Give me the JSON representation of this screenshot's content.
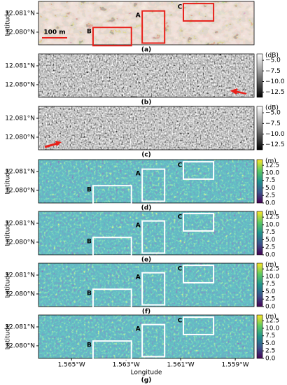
{
  "chart_data": [
    {
      "type": "image",
      "label": "(a)",
      "ylabel": "Latitude",
      "ylim": [
        12.07933,
        12.08163
      ],
      "yticks": [
        {
          "value": 12.081,
          "label": "12.081°N"
        },
        {
          "value": 12.08,
          "label": "12.080°N"
        }
      ],
      "annotations": [
        "A",
        "B",
        "C",
        "100 m"
      ]
    },
    {
      "type": "image",
      "label": "(b)",
      "ylim": [
        12.07933,
        12.08163
      ],
      "yticks": [
        {
          "value": 12.081,
          "label": "12.081°N"
        },
        {
          "value": 12.08,
          "label": "12.080°N"
        }
      ],
      "colorbar": {
        "unit": "(dB)",
        "clim": [
          -13.7,
          -3.5
        ],
        "colormap": "gray",
        "ticks": [
          {
            "value": -5,
            "label": "−5.0"
          },
          {
            "value": -7.5,
            "label": "−7.5"
          },
          {
            "value": -10,
            "label": "−10.0"
          },
          {
            "value": -12.5,
            "label": "−12.5"
          }
        ]
      }
    },
    {
      "type": "image",
      "label": "(c)",
      "ylim": [
        12.07933,
        12.08163
      ],
      "yticks": [
        {
          "value": 12.081,
          "label": "12.081°N"
        },
        {
          "value": 12.08,
          "label": "12.080°N"
        }
      ],
      "colorbar": {
        "unit": "(dB)",
        "clim": [
          -13.7,
          -3.5
        ],
        "colormap": "gray",
        "ticks": [
          {
            "value": -5,
            "label": "−5.0"
          },
          {
            "value": -7.5,
            "label": "−7.5"
          },
          {
            "value": -10,
            "label": "−10.0"
          },
          {
            "value": -12.5,
            "label": "−12.5"
          }
        ]
      }
    },
    {
      "type": "image",
      "label": "(d)",
      "ylabel": "Latitude",
      "ylim": [
        12.07933,
        12.08163
      ],
      "yticks": [
        {
          "value": 12.081,
          "label": "12.081°N"
        },
        {
          "value": 12.08,
          "label": "12.080°N"
        }
      ],
      "annotations": [
        "A",
        "B",
        "C"
      ],
      "colorbar": {
        "unit": "(m)",
        "clim": [
          0,
          14.4
        ],
        "colormap": "viridis",
        "ticks": [
          {
            "value": 0,
            "label": "0.0"
          },
          2.5,
          {
            "value": 5,
            "label": "5.0"
          },
          7.5,
          {
            "value": 10,
            "label": "10.0"
          },
          12.5
        ]
      }
    },
    {
      "type": "image",
      "label": "(e)",
      "ylabel": "Latitude",
      "ylim": [
        12.07933,
        12.08163
      ],
      "yticks": [
        {
          "value": 12.081,
          "label": "12.081°N"
        },
        {
          "value": 12.08,
          "label": "12.080°N"
        }
      ],
      "annotations": [
        "A",
        "B",
        "C"
      ],
      "colorbar": {
        "unit": "(m)",
        "clim": [
          0,
          14.4
        ],
        "colormap": "viridis",
        "ticks": [
          {
            "value": 0,
            "label": "0.0"
          },
          2.5,
          {
            "value": 5,
            "label": "5.0"
          },
          7.5,
          {
            "value": 10,
            "label": "10.0"
          },
          12.5
        ]
      }
    },
    {
      "type": "image",
      "label": "(f)",
      "ylabel": "Latitude",
      "ylim": [
        12.07933,
        12.08163
      ],
      "yticks": [
        {
          "value": 12.081,
          "label": "12.081°N"
        },
        {
          "value": 12.08,
          "label": "12.080°N"
        }
      ],
      "annotations": [
        "A",
        "B",
        "C"
      ],
      "colorbar": {
        "unit": "(m)",
        "clim": [
          0,
          14.4
        ],
        "colormap": "viridis",
        "ticks": [
          {
            "value": 0,
            "label": "0.0"
          },
          2.5,
          {
            "value": 5,
            "label": "5.0"
          },
          7.5,
          {
            "value": 10,
            "label": "10.0"
          },
          12.5
        ]
      }
    },
    {
      "type": "image",
      "label": "(g)",
      "ylabel": "Latitude",
      "xlabel": "Longitude",
      "ylim": [
        12.07933,
        12.08163
      ],
      "yticks": [
        {
          "value": 12.081,
          "label": "12.081°N"
        },
        {
          "value": 12.08,
          "label": "12.080°N"
        }
      ],
      "xlim": [
        -1.56621,
        -1.55831
      ],
      "xticks": [
        {
          "value": -1.565,
          "label": "1.565°W"
        },
        {
          "value": -1.563,
          "label": "1.563°W"
        },
        {
          "value": -1.561,
          "label": "1.561°W"
        },
        {
          "value": -1.559,
          "label": "1.559°W"
        }
      ],
      "annotations": [
        "A",
        "B",
        "C"
      ],
      "colorbar": {
        "unit": "(m)",
        "clim": [
          0,
          14.4
        ],
        "colormap": "viridis",
        "ticks": [
          {
            "value": 0,
            "label": "0.0"
          },
          2.5,
          {
            "value": 5,
            "label": "5.0"
          },
          7.5,
          {
            "value": 10,
            "label": "10.0"
          },
          12.5
        ]
      }
    }
  ]
}
